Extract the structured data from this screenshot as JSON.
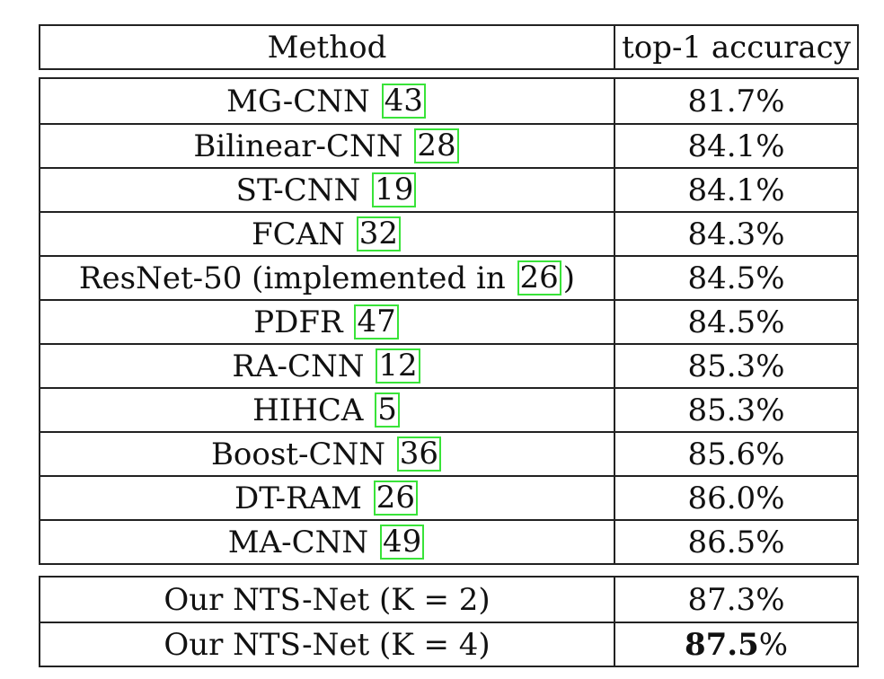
{
  "header": {
    "method": "Method",
    "accuracy": "top-1 accuracy"
  },
  "rows": [
    {
      "pre": "MG-CNN ",
      "ref": "43",
      "post": "",
      "acc": "81.7%"
    },
    {
      "pre": "Bilinear-CNN ",
      "ref": "28",
      "post": "",
      "acc": "84.1%"
    },
    {
      "pre": "ST-CNN ",
      "ref": "19",
      "post": "",
      "acc": "84.1%"
    },
    {
      "pre": "FCAN ",
      "ref": "32",
      "post": "",
      "acc": "84.3%"
    },
    {
      "pre": "ResNet-50 (implemented in ",
      "ref": "26",
      "post": ")",
      "acc": "84.5%"
    },
    {
      "pre": "PDFR ",
      "ref": "47",
      "post": "",
      "acc": "84.5%"
    },
    {
      "pre": "RA-CNN ",
      "ref": "12",
      "post": "",
      "acc": "85.3%"
    },
    {
      "pre": "HIHCA ",
      "ref": "5",
      "post": "",
      "acc": "85.3%"
    },
    {
      "pre": "Boost-CNN ",
      "ref": "36",
      "post": "",
      "acc": "85.6%"
    },
    {
      "pre": "DT-RAM ",
      "ref": "26",
      "post": "",
      "acc": "86.0%"
    },
    {
      "pre": "MA-CNN ",
      "ref": "49",
      "post": "",
      "acc": "86.5%"
    }
  ],
  "ours": [
    {
      "method": "Our NTS-Net (K = 2)",
      "acc": "87.3%",
      "bold": false
    },
    {
      "method": "Our NTS-Net (K = 4)",
      "acc_bold": "87.5",
      "acc_rest": "%",
      "bold": true
    }
  ],
  "colors": {
    "ref_box": "#39e339",
    "border": "#222222"
  }
}
